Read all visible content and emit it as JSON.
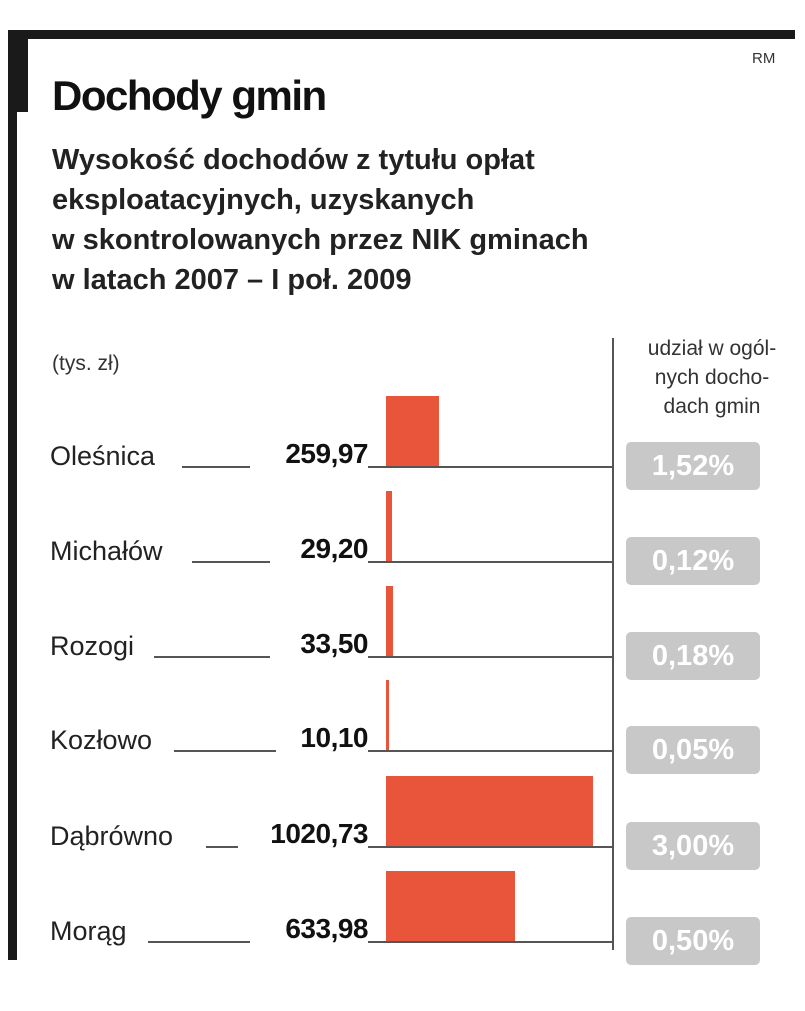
{
  "credit": "RM",
  "chart_data": {
    "type": "bar",
    "title": "Dochody gmin",
    "subtitle": "Wysokość dochodów z tytułu opłat eksploatacyjnych, uzyskanych w skontrolowanych przez NIK gminach w latach 2007 – I poł. 2009",
    "unit_label": "(tys. zł)",
    "share_header": "udział w ogól-nych docho-dach gmin",
    "share_header_lines": [
      "udział w ogól-",
      "nych docho-",
      "dach gmin"
    ],
    "categories": [
      "Oleśnica",
      "Michałów",
      "Rozogi",
      "Kozłowo",
      "Dąbrówno",
      "Morąg"
    ],
    "values": [
      259.97,
      29.2,
      33.5,
      10.1,
      1020.73,
      633.98
    ],
    "value_labels": [
      "259,97",
      "29,20",
      "33,50",
      "10,10",
      "1020,73",
      "633,98"
    ],
    "share_labels": [
      "1,52%",
      "0,12%",
      "0,18%",
      "0,05%",
      "3,00%",
      "0,50%"
    ],
    "share_values": [
      1.52,
      0.12,
      0.18,
      0.05,
      3.0,
      0.5
    ],
    "xlim": [
      0,
      1020.73
    ],
    "colors": {
      "bar": "#e8553a",
      "badge": "#c8c8c8",
      "frame": "#1a1a1a"
    }
  }
}
